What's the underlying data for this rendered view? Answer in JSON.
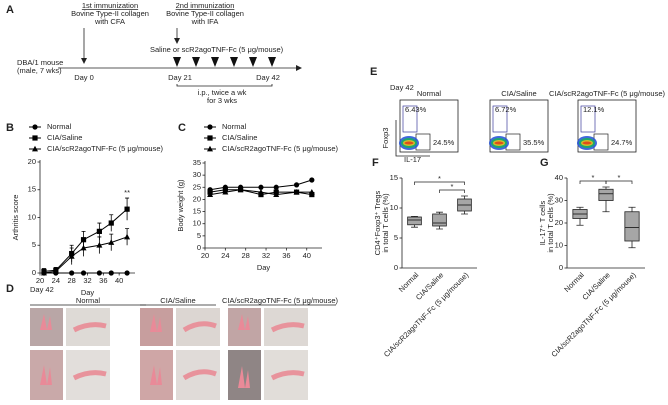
{
  "labels": [
    "A",
    "B",
    "C",
    "D",
    "E",
    "F",
    "G"
  ],
  "timeline": {
    "first": {
      "title": "1st immunization",
      "lines": [
        "Bovine Type-II collagen",
        "with CFA"
      ]
    },
    "second": {
      "title": "2nd immunization",
      "lines": [
        "Bovine Type-II collagen",
        "with IFA"
      ]
    },
    "treatment": "Saline or scR2agoTNF-Fc  (5 μg/mouse)",
    "mouse": [
      "DBA/1 mouse",
      "(male, 7 wks)"
    ],
    "days": [
      "Day 0",
      "Day 21",
      "Day 42"
    ],
    "schedule": [
      "i.p., twice a wk",
      "for 3 wks"
    ]
  },
  "photos": {
    "day": "Day 42",
    "groups": [
      "Normal",
      "CIA/Saline",
      "CIA/scR2agoTNF-Fc  (5 μg/mouse)"
    ]
  },
  "flow": {
    "day": "Day 42",
    "y_label": "Foxp3",
    "x_label": "IL-17",
    "plots": [
      {
        "title": "Normal",
        "upper": "6.43%",
        "lower": "24.5%"
      },
      {
        "title": "CIA/Saline",
        "upper": "6.72%",
        "lower": "35.5%"
      },
      {
        "title": "CIA/scR2agoTNF-Fc  (5 μg/mouse)",
        "upper": "12.1%",
        "lower": "24.7%"
      }
    ]
  },
  "chart_data": [
    {
      "type": "line",
      "y_label": "Arthritis score",
      "x_label": "Day",
      "xlim": [
        20,
        44
      ],
      "xticks": [
        20,
        24,
        28,
        32,
        36,
        40
      ],
      "ylim": [
        0,
        20
      ],
      "yticks": [
        0,
        5,
        10,
        15,
        20
      ],
      "x": [
        21,
        24,
        28,
        31,
        35,
        38,
        42
      ],
      "series": [
        {
          "name": "Normal",
          "color": "#000000",
          "marker": "circle",
          "values": [
            0,
            0,
            0,
            0,
            0,
            0,
            0
          ]
        },
        {
          "name": "CIA/Saline",
          "color": "#000000",
          "marker": "square",
          "values": [
            0.3,
            0.5,
            3.5,
            6,
            7.5,
            9,
            11.5
          ],
          "errors": [
            0.5,
            0.5,
            1.5,
            1.5,
            1.5,
            1.5,
            2
          ]
        },
        {
          "name": "CIA/scR2agoTNF-Fc  (5 μg/mouse)",
          "color": "#000000",
          "marker": "triangle",
          "values": [
            0,
            0.3,
            3,
            4.5,
            5,
            5.5,
            6.5
          ],
          "errors": [
            0.3,
            0.3,
            1.5,
            1.5,
            1.5,
            1.5,
            1.5
          ]
        }
      ],
      "annotation": "**"
    },
    {
      "type": "line",
      "y_label": "Body weight (g)",
      "x_label": "Day",
      "xlim": [
        20,
        43
      ],
      "xticks": [
        20,
        24,
        28,
        32,
        36,
        40
      ],
      "ylim": [
        0,
        35
      ],
      "yticks": [
        0,
        5,
        10,
        15,
        20,
        25,
        30,
        35
      ],
      "x": [
        21,
        24,
        27,
        31,
        34,
        38,
        41
      ],
      "series": [
        {
          "name": "Normal",
          "color": "#000000",
          "marker": "circle",
          "values": [
            24,
            25,
            25,
            25,
            25,
            26,
            28
          ]
        },
        {
          "name": "CIA/Saline",
          "color": "#000000",
          "marker": "square",
          "values": [
            23,
            24,
            24,
            22,
            23,
            23,
            22
          ]
        },
        {
          "name": "CIA/scR2agoTNF-Fc  (5 μg/mouse)",
          "color": "#000000",
          "marker": "triangle",
          "values": [
            22,
            23,
            24,
            23,
            22,
            23,
            23
          ]
        }
      ]
    },
    {
      "type": "box",
      "y_label": [
        "CD4⁺Foxp3⁺ Tregs",
        "in total T cells (%)"
      ],
      "categories": [
        "Normal",
        "CIA/Saline",
        "CIA/scR2agoTNF-Fc  (5 μg/mouse)"
      ],
      "color": "#a6a6a6",
      "ylim": [
        0,
        15
      ],
      "yticks": [
        0,
        5,
        10,
        15
      ],
      "boxes": [
        {
          "min": 6.8,
          "q1": 7.2,
          "median": 8,
          "q3": 8.5,
          "max": 8.6
        },
        {
          "min": 6.5,
          "q1": 7,
          "median": 7.5,
          "q3": 9,
          "max": 9.3
        },
        {
          "min": 9,
          "q1": 9.5,
          "median": 10.5,
          "q3": 11.5,
          "max": 12
        }
      ],
      "comparisons": [
        {
          "between": [
            "Normal",
            "CIA/scR2agoTNF-Fc  (5 μg/mouse)"
          ],
          "label": "*"
        },
        {
          "between": [
            "CIA/Saline",
            "CIA/scR2agoTNF-Fc  (5 μg/mouse)"
          ],
          "label": "*"
        }
      ]
    },
    {
      "type": "box",
      "y_label": [
        "IL-17⁺ T cells",
        "in total T cells (%)"
      ],
      "categories": [
        "Normal",
        "CIA/Saline",
        "CIA/scR2agoTNF-Fc  (5 μg/mouse)"
      ],
      "color": "#a6a6a6",
      "ylim": [
        0,
        40
      ],
      "yticks": [
        0,
        10,
        20,
        30,
        40
      ],
      "boxes": [
        {
          "min": 19,
          "q1": 22,
          "median": 24,
          "q3": 26,
          "max": 27
        },
        {
          "min": 25,
          "q1": 30,
          "median": 33,
          "q3": 35,
          "max": 36
        },
        {
          "min": 9,
          "q1": 12,
          "median": 18,
          "q3": 25,
          "max": 27
        }
      ],
      "comparisons": [
        {
          "between": [
            "Normal",
            "CIA/Saline"
          ],
          "label": "*"
        },
        {
          "between": [
            "CIA/Saline",
            "CIA/scR2agoTNF-Fc  (5 μg/mouse)"
          ],
          "label": "*"
        }
      ]
    }
  ]
}
